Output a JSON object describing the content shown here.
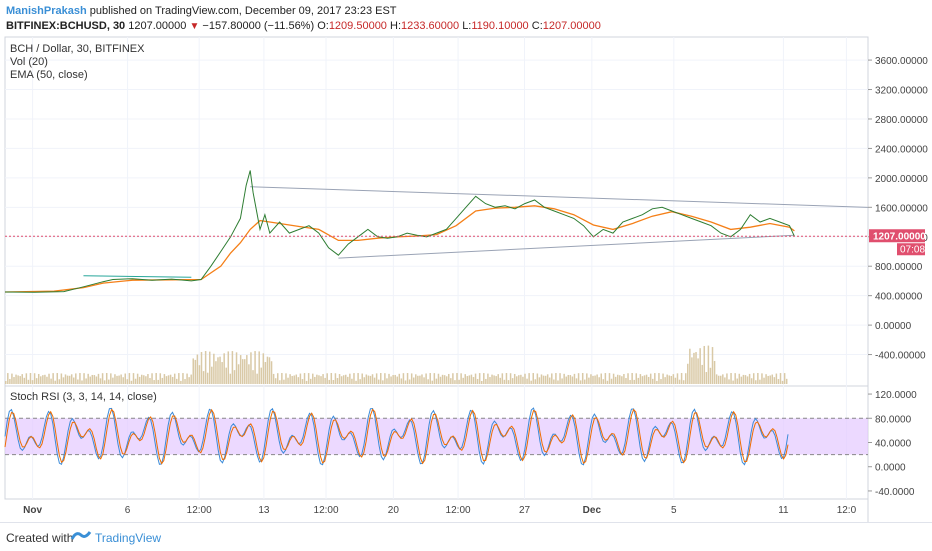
{
  "header": {
    "author": "ManishPrakash",
    "published_text": "published on TradingView.com, December 09, 2017 23:23 EST",
    "symbol": "BITFINEX:BCHUSD, 30",
    "last": "1207.00000",
    "change": "−157.80000 (−11.56%)",
    "o_label": "O:",
    "o_value": "1209.50000",
    "h_label": "H:",
    "h_value": "1233.60000",
    "l_label": "L:",
    "l_value": "1190.10000",
    "c_label": "C:",
    "c_value": "1207.00000",
    "arrow": "▼"
  },
  "legend": {
    "title": "BCH / Dollar, 30, BITFINEX",
    "vol": "Vol (20)",
    "ema": "EMA (50, close)",
    "stoch": "Stoch RSI (3, 3, 14, 14, close)"
  },
  "price_badge": {
    "value": "1207.00000",
    "time": "07:08"
  },
  "footer": {
    "created_with": "Created with",
    "brand": "TradingView"
  },
  "colors": {
    "price_line": "#e04f6e",
    "ema": "#f57f17",
    "trendline": "#9aa3b5",
    "volume": "#d9c9a6",
    "stoch_k": "#3b8ad8",
    "stoch_d": "#ef6c00",
    "stoch_band": "#e4c9ff"
  },
  "chart_data": [
    {
      "type": "line",
      "title": "BCH / Dollar, 30, BITFINEX",
      "x_ticks": [
        "Nov",
        "6",
        "12:00",
        "13",
        "12:00",
        "20",
        "12:00",
        "27",
        "Dec",
        "5",
        "11",
        "12:0"
      ],
      "y_ticks": [
        "3600.00000",
        "3200.00000",
        "2800.00000",
        "2400.00000",
        "2000.00000",
        "1600.00000",
        "1200.00000",
        "800.00000",
        "400.00000",
        "0.00000",
        "-400.00000"
      ],
      "ylim": [
        -800,
        3900
      ],
      "series": [
        {
          "name": "",
          "points": [
            [
              0,
              450
            ],
            [
              3,
              445
            ],
            [
              6,
              455
            ],
            [
              8,
              520
            ],
            [
              10,
              590
            ],
            [
              11,
              620
            ],
            [
              13,
              630
            ],
            [
              15,
              610
            ],
            [
              17,
              625
            ],
            [
              19,
              600
            ],
            [
              20,
              620
            ],
            [
              21,
              800
            ],
            [
              22,
              1000
            ],
            [
              23,
              1200
            ],
            [
              24,
              1450
            ],
            [
              24.6,
              1900
            ],
            [
              25,
              2100
            ],
            [
              25.3,
              1800
            ],
            [
              26,
              1300
            ],
            [
              26.5,
              1500
            ],
            [
              27,
              1250
            ],
            [
              28,
              1400
            ],
            [
              29,
              1250
            ],
            [
              30,
              1300
            ],
            [
              31,
              1350
            ],
            [
              32,
              1250
            ],
            [
              33,
              1050
            ],
            [
              34,
              950
            ],
            [
              35,
              1100
            ],
            [
              36,
              1200
            ],
            [
              37,
              1300
            ],
            [
              38,
              1200
            ],
            [
              39,
              1180
            ],
            [
              40,
              1200
            ],
            [
              41,
              1250
            ],
            [
              42,
              1220
            ],
            [
              43,
              1200
            ],
            [
              44,
              1250
            ],
            [
              45,
              1300
            ],
            [
              46,
              1450
            ],
            [
              47,
              1600
            ],
            [
              48,
              1750
            ],
            [
              49,
              1650
            ],
            [
              50,
              1600
            ],
            [
              51,
              1620
            ],
            [
              52,
              1580
            ],
            [
              53,
              1650
            ],
            [
              54,
              1700
            ],
            [
              55,
              1600
            ],
            [
              56,
              1550
            ],
            [
              57,
              1500
            ],
            [
              58,
              1450
            ],
            [
              59,
              1350
            ],
            [
              60,
              1200
            ],
            [
              61,
              1300
            ],
            [
              62,
              1250
            ],
            [
              63,
              1400
            ],
            [
              64,
              1450
            ],
            [
              65,
              1500
            ],
            [
              66,
              1580
            ],
            [
              67,
              1600
            ],
            [
              68,
              1550
            ],
            [
              69,
              1500
            ],
            [
              70,
              1450
            ],
            [
              71,
              1400
            ],
            [
              72,
              1350
            ],
            [
              73,
              1250
            ],
            [
              74,
              1200
            ],
            [
              75,
              1300
            ],
            [
              76,
              1500
            ],
            [
              77,
              1400
            ],
            [
              78,
              1450
            ],
            [
              79,
              1400
            ],
            [
              80,
              1350
            ],
            [
              80.5,
              1207
            ]
          ]
        },
        {
          "name": "",
          "points": [
            [
              0,
              450
            ],
            [
              5,
              460
            ],
            [
              8,
              510
            ],
            [
              10,
              570
            ],
            [
              13,
              610
            ],
            [
              17,
              615
            ],
            [
              20,
              620
            ],
            [
              22,
              800
            ],
            [
              23,
              980
            ],
            [
              24,
              1120
            ],
            [
              25,
              1300
            ],
            [
              26,
              1420
            ],
            [
              27,
              1400
            ],
            [
              28,
              1380
            ],
            [
              30,
              1340
            ],
            [
              32,
              1300
            ],
            [
              34,
              1150
            ],
            [
              36,
              1150
            ],
            [
              38,
              1180
            ],
            [
              40,
              1200
            ],
            [
              42,
              1210
            ],
            [
              44,
              1230
            ],
            [
              46,
              1350
            ],
            [
              48,
              1550
            ],
            [
              50,
              1590
            ],
            [
              52,
              1600
            ],
            [
              54,
              1620
            ],
            [
              56,
              1580
            ],
            [
              58,
              1500
            ],
            [
              60,
              1360
            ],
            [
              62,
              1300
            ],
            [
              64,
              1380
            ],
            [
              66,
              1480
            ],
            [
              68,
              1540
            ],
            [
              70,
              1480
            ],
            [
              72,
              1400
            ],
            [
              74,
              1300
            ],
            [
              76,
              1330
            ],
            [
              78,
              1380
            ],
            [
              80,
              1330
            ],
            [
              80.5,
              1280
            ]
          ]
        }
      ],
      "trendlines": [
        {
          "name": "",
          "points": [
            [
              25,
              1880
            ],
            [
              88,
              1600
            ]
          ]
        },
        {
          "name": "",
          "points": [
            [
              34,
              910
            ],
            [
              80.5,
              1220
            ]
          ]
        },
        {
          "name": "",
          "points": [
            [
              8,
              670
            ],
            [
              19,
              650
            ]
          ]
        }
      ],
      "current_price": 1207
    },
    {
      "type": "line",
      "title": "Stoch RSI (3, 3, 14, 14, close)",
      "y_ticks": [
        "120.0000",
        "80.0000",
        "40.0000",
        "0.0000",
        "-40.0000"
      ],
      "ylim": [
        -50,
        130
      ],
      "band": [
        20,
        80
      ]
    }
  ]
}
